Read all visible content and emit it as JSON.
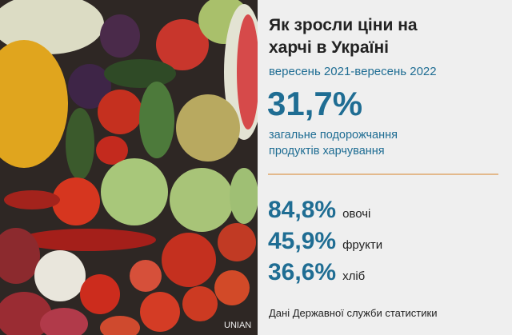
{
  "header": {
    "title_line1": "Як зросли ціни на",
    "title_line2": "харчі в Україні",
    "period": "вересень 2021-вересень 2022"
  },
  "headline": {
    "value": "31,7%",
    "description_line1": "загальне подорожчання",
    "description_line2": "продуктів харчування"
  },
  "items": [
    {
      "value": "84,8%",
      "label": "овочі"
    },
    {
      "value": "45,9%",
      "label": "фрукти"
    },
    {
      "value": "36,6%",
      "label": "хліб"
    }
  ],
  "source": "Дані Державної служби статистики",
  "watermark": "UNIAN"
}
